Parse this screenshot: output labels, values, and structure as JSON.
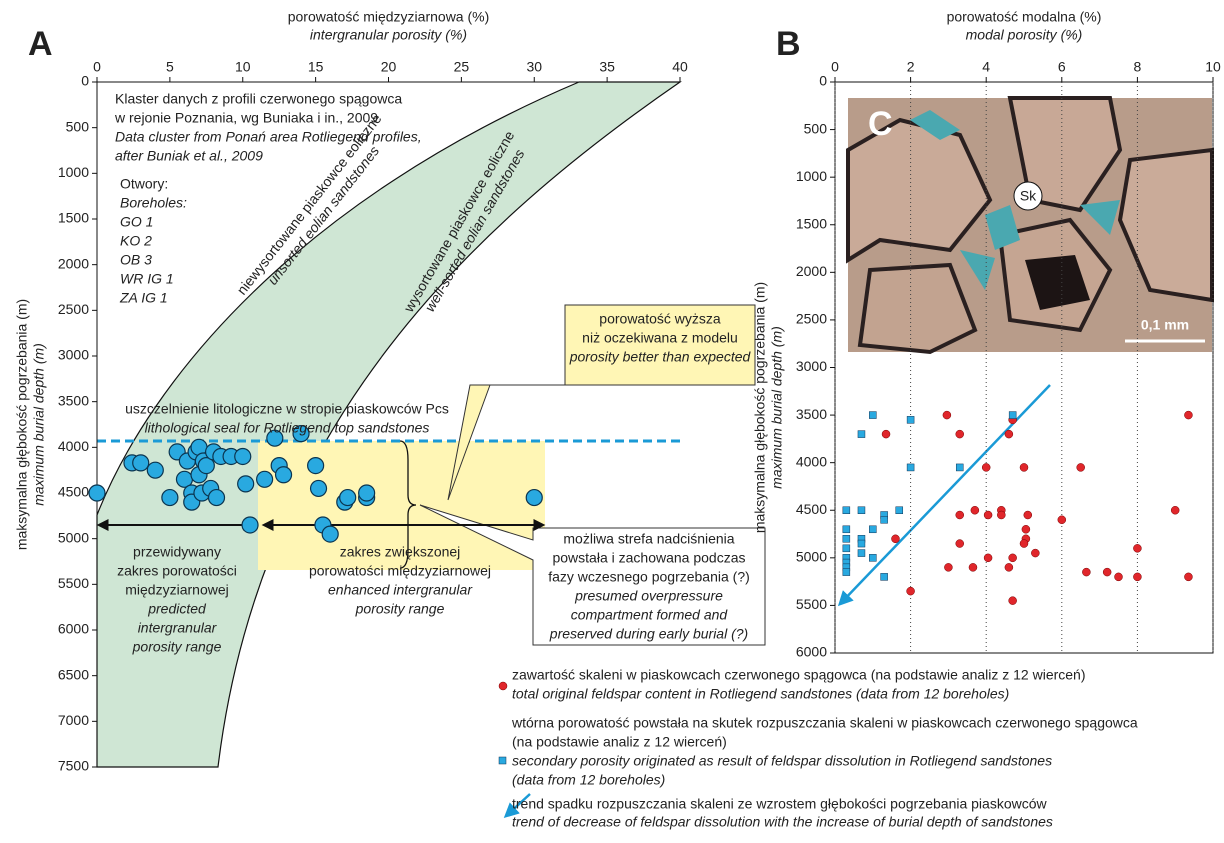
{
  "chart_data": [
    {
      "type": "scatter",
      "panel": "A",
      "x_label": "porowatość międzyziarnowa (%)",
      "x_label_en": "intergranular porosity (%)",
      "y_label": "maksymalna głębokość pogrzebania (m)",
      "y_label_en": "maximum burial depth (m)",
      "xlim": [
        0,
        40
      ],
      "ylim": [
        0,
        7500
      ],
      "y_inverted": true,
      "xticks": [
        0,
        5,
        10,
        15,
        20,
        25,
        30,
        35,
        40
      ],
      "yticks": [
        0,
        500,
        1000,
        1500,
        2000,
        2500,
        3000,
        3500,
        4000,
        4500,
        5000,
        5500,
        6000,
        6500,
        7000,
        7500
      ],
      "series": [
        {
          "color": "#29a9e0",
          "x": [
            0,
            2.4,
            3,
            4,
            5.5,
            5,
            6.2,
            6,
            6.5,
            6.5,
            6.8,
            7,
            7,
            7.2,
            7.3,
            7.5,
            7.8,
            8,
            8.2,
            8.5,
            9.2,
            10,
            10.2,
            10.5,
            11.5,
            12.2,
            12.5,
            12.8,
            14,
            15,
            15.2,
            15.5,
            16,
            17,
            17.2,
            18.5,
            18.5,
            30
          ],
          "values": [
            4500,
            4170,
            4170,
            4250,
            4050,
            4550,
            4150,
            4350,
            4500,
            4600,
            4050,
            4300,
            4000,
            4500,
            4150,
            4200,
            4450,
            4050,
            4550,
            4100,
            4100,
            4100,
            4400,
            4850,
            4350,
            3900,
            4200,
            4300,
            3850,
            4200,
            4450,
            4850,
            4950,
            4600,
            4550,
            4550,
            4500,
            4550
          ]
        }
      ],
      "annotations": {
        "cluster": [
          "Klaster danych z profili czerwonego spągowca",
          "w rejonie Poznania, wg Buniaka i in., 2009",
          "Data cluster from Ponań area Rotliegend profiles,",
          "after Buniak et al., 2009"
        ],
        "boreholes": [
          "Otwory:",
          "Boreholes:",
          "GO 1",
          "KO 2",
          "OB 3",
          "WR IG 1",
          "ZA IG 1"
        ],
        "unsorted": [
          "niewysortowane piaskowce eoliczne",
          "unsorted eolian sandstones"
        ],
        "wellsorted": [
          "wysortowane piaskowce eoliczne",
          "well-sorted eolian sandstones"
        ],
        "better": [
          "porowatość wyższa",
          "niż oczekiwana z modelu",
          "porosity better than expected"
        ],
        "seal": [
          "uszczelnienie litologiczne w stropie piaskowców Pcs",
          "lithological seal for Rotliegend top sandstones"
        ],
        "overpressure": [
          "możliwa strefa nadciśnienia",
          "powstała i zachowana podczas",
          "fazy wczesnego pogrzebania (?)",
          "presumed overpressure",
          "compartment formed and",
          "preserved during early burial (?)"
        ],
        "predicted": [
          "przewidywany",
          "zakres porowatości",
          "międzyziarnowej",
          "predicted",
          "intergranular",
          "porosity range"
        ],
        "enhanced": [
          "zakres zwiększonej",
          "porowatości międzyziarnowej",
          "enhanced intergranular",
          "porosity range"
        ]
      }
    },
    {
      "type": "scatter",
      "panel": "B",
      "photo_label": "C",
      "photo_marker": "Sk",
      "scale_bar": "0,1 mm",
      "x_label": "porowatość modalna (%)",
      "x_label_en": "modal porosity (%)",
      "y_label": "maksymalna głębokość pogrzebania (m)",
      "y_label_en": "maximum burial depth (m)",
      "xlim": [
        0,
        10
      ],
      "ylim": [
        0,
        6000
      ],
      "y_inverted": true,
      "grid_x": true,
      "xticks": [
        0,
        2,
        4,
        6,
        8,
        10
      ],
      "yticks": [
        0,
        500,
        1000,
        1500,
        2000,
        2500,
        3000,
        3500,
        4000,
        4500,
        5000,
        5500,
        6000
      ],
      "series": [
        {
          "name": "zawartość skaleni w piaskowcach czerwonego spągowca (na podstawie analiz z 12 wierceń)",
          "description": [
            "total original feldspar content in Rotliegend sandstones (data from 12 boreholes)"
          ],
          "color": "#e0262b",
          "marker": "circle",
          "x": [
            2.96,
            3.3,
            1.35,
            4.7,
            4.6,
            4.0,
            5.0,
            6.5,
            9.35,
            1.6,
            3.3,
            3.7,
            4.05,
            4.4,
            4.4,
            5.1,
            6.0,
            5.05,
            5.05,
            5.0,
            3.3,
            5.3,
            4.7,
            4.05,
            3.65,
            3.0,
            4.6,
            9.0,
            7.2,
            7.5,
            8.0,
            8.0,
            6.65,
            4.7,
            2.0,
            9.35
          ],
          "values": [
            3500,
            3700,
            3700,
            3550,
            3700,
            4050,
            4050,
            4050,
            3500,
            4800,
            4550,
            4500,
            4550,
            4500,
            4550,
            4550,
            4600,
            4700,
            4800,
            4850,
            4850,
            4950,
            5000,
            5000,
            5100,
            5100,
            5100,
            4500,
            5150,
            5200,
            5200,
            4900,
            5150,
            5450,
            5350,
            5200
          ]
        },
        {
          "name": "wtórna porowatość powstała na skutek rozpuszczania skaleni w piaskowcach czerwonego spągowca",
          "description": [
            "(na podstawie analiz z 12 wierceń)",
            "secondary porosity originated as result of feldspar dissolution in Rotliegend sandstones",
            "(data from 12 boreholes)"
          ],
          "color": "#29a9e0",
          "marker": "square",
          "x": [
            1.0,
            2.0,
            0.7,
            4.7,
            2.0,
            3.3,
            0.3,
            0.7,
            1.3,
            1.7,
            1.3,
            0.3,
            1.0,
            0.3,
            0.7,
            0.7,
            0.3,
            0.7,
            0.3,
            1.0,
            0.3,
            0.3,
            0.3,
            1.3
          ],
          "values": [
            3500,
            3550,
            3700,
            3500,
            4050,
            4050,
            4500,
            4500,
            4550,
            4500,
            4600,
            4700,
            4700,
            4800,
            4800,
            4850,
            4900,
            4950,
            5000,
            5000,
            5050,
            5100,
            5150,
            5200
          ]
        }
      ],
      "trend": [
        "trend spadku rozpuszczania skaleni ze wzrostem głębokości pogrzebania piaskowców",
        "trend of decrease of feldspar dissolution with the increase of burial depth of sandstones"
      ]
    }
  ]
}
